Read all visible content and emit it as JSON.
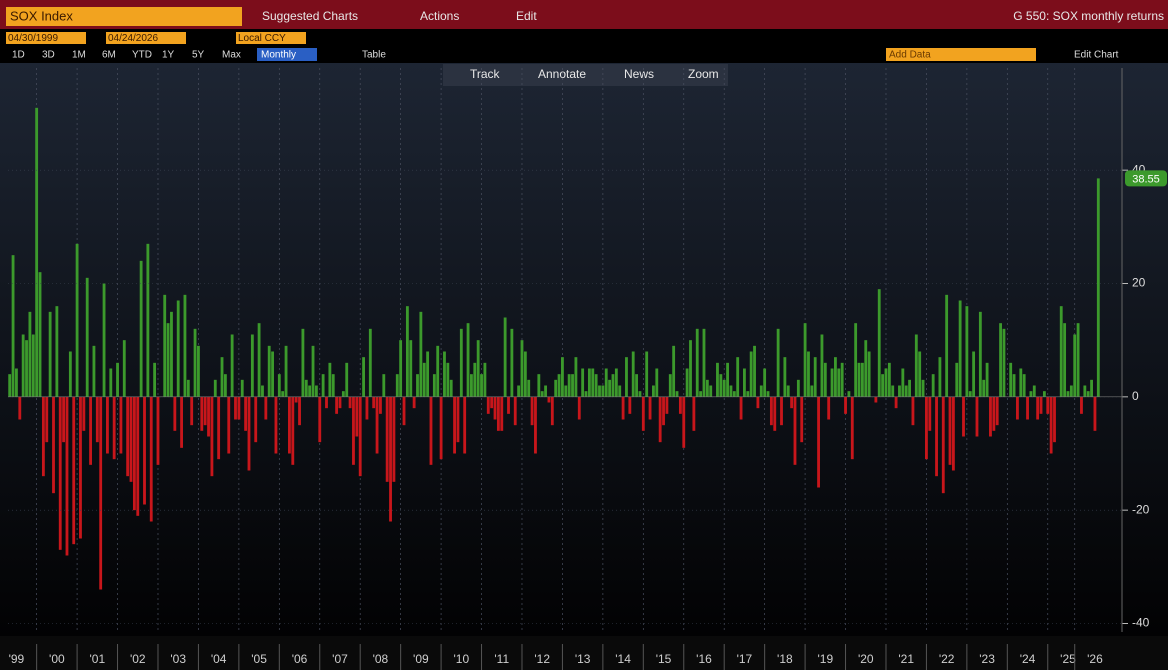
{
  "ui": {
    "security": "SOX Index",
    "menu": [
      "Suggested Charts",
      "Actions",
      "Edit"
    ],
    "chart_name": "G 550: SOX monthly returns",
    "start_date": "04/30/1999",
    "end_date": "04/24/2026",
    "currency": "Local CCY",
    "periods": [
      "1D",
      "3D",
      "1M",
      "6M",
      "YTD",
      "1Y",
      "5Y",
      "Max"
    ],
    "frequency": "Monthly",
    "table": "Table",
    "add_data": "Add Data",
    "edit_chart": "Edit Chart",
    "tools": [
      "Track",
      "Annotate",
      "News",
      "Zoom"
    ]
  },
  "chart_data": {
    "type": "bar",
    "positive_color": "#3c9a2c",
    "negative_color": "#c8161b",
    "ylim": [
      -41.5,
      54.5
    ],
    "yticks": [
      -40,
      -20,
      0,
      20,
      40
    ],
    "categories": [
      null,
      null,
      "'99",
      null,
      null,
      null,
      null,
      null,
      null,
      null,
      null,
      null,
      null,
      null,
      "'00",
      null,
      null,
      null,
      null,
      null,
      null,
      null,
      null,
      null,
      null,
      null,
      "'01",
      null,
      null,
      null,
      null,
      null,
      null,
      null,
      null,
      null,
      null,
      null,
      "'02",
      null,
      null,
      null,
      null,
      null,
      null,
      null,
      null,
      null,
      null,
      null,
      "'03",
      null,
      null,
      null,
      null,
      null,
      null,
      null,
      null,
      null,
      null,
      null,
      "'04",
      null,
      null,
      null,
      null,
      null,
      null,
      null,
      null,
      null,
      null,
      null,
      "'05",
      null,
      null,
      null,
      null,
      null,
      null,
      null,
      null,
      null,
      null,
      null,
      "'06",
      null,
      null,
      null,
      null,
      null,
      null,
      null,
      null,
      null,
      null,
      null,
      "'07",
      null,
      null,
      null,
      null,
      null,
      null,
      null,
      null,
      null,
      null,
      null,
      "'08",
      null,
      null,
      null,
      null,
      null,
      null,
      null,
      null,
      null,
      null,
      null,
      "'09",
      null,
      null,
      null,
      null,
      null,
      null,
      null,
      null,
      null,
      null,
      null,
      "'10",
      null,
      null,
      null,
      null,
      null,
      null,
      null,
      null,
      null,
      null,
      null,
      "'11",
      null,
      null,
      null,
      null,
      null,
      null,
      null,
      null,
      null,
      null,
      null,
      "'12",
      null,
      null,
      null,
      null,
      null,
      null,
      null,
      null,
      null,
      null,
      null,
      "'13",
      null,
      null,
      null,
      null,
      null,
      null,
      null,
      null,
      null,
      null,
      null,
      "'14",
      null,
      null,
      null,
      null,
      null,
      null,
      null,
      null,
      null,
      null,
      null,
      "'15",
      null,
      null,
      null,
      null,
      null,
      null,
      null,
      null,
      null,
      null,
      null,
      "'16",
      null,
      null,
      null,
      null,
      null,
      null,
      null,
      null,
      null,
      null,
      null,
      "'17",
      null,
      null,
      null,
      null,
      null,
      null,
      null,
      null,
      null,
      null,
      null,
      "'18",
      null,
      null,
      null,
      null,
      null,
      null,
      null,
      null,
      null,
      null,
      null,
      "'19",
      null,
      null,
      null,
      null,
      null,
      null,
      null,
      null,
      null,
      null,
      null,
      "'20",
      null,
      null,
      null,
      null,
      null,
      null,
      null,
      null,
      null,
      null,
      null,
      "'21",
      null,
      null,
      null,
      null,
      null,
      null,
      null,
      null,
      null,
      null,
      null,
      "'22",
      null,
      null,
      null,
      null,
      null,
      null,
      null,
      null,
      null,
      null,
      null,
      "'23",
      null,
      null,
      null,
      null,
      null,
      null,
      null,
      null,
      null,
      null,
      null,
      "'24",
      null,
      null,
      null,
      null,
      null,
      null,
      null,
      null,
      null,
      null,
      null,
      "'25",
      null,
      null,
      null,
      null,
      null,
      null,
      null,
      "'26",
      null
    ],
    "values": [
      4,
      25,
      5,
      -4,
      11,
      10,
      15,
      11,
      51,
      22,
      -14,
      -8,
      15,
      -17,
      16,
      -27,
      -8,
      -28,
      8,
      -26,
      27,
      -25,
      -6,
      21,
      -12,
      9,
      -8,
      -34,
      20,
      -10,
      5,
      -11,
      6,
      -10,
      10,
      -14,
      -15,
      -20,
      -21,
      24,
      -19,
      27,
      -22,
      6,
      -12,
      0,
      18,
      13,
      15,
      -6,
      17,
      -9,
      18,
      3,
      -5,
      12,
      9,
      -6,
      -5,
      -7,
      -14,
      3,
      -11,
      7,
      4,
      -10,
      11,
      -4,
      -4,
      3,
      -6,
      -13,
      11,
      -8,
      13,
      2,
      -4,
      9,
      8,
      -10,
      4,
      1,
      9,
      -10,
      -12,
      -1,
      -5,
      12,
      3,
      2,
      9,
      2,
      -8,
      4,
      -2,
      6,
      4,
      -3,
      -2,
      1,
      6,
      -2,
      -12,
      -7,
      -14,
      7,
      -4,
      12,
      -2,
      -10,
      -3,
      4,
      -15,
      -22,
      -15,
      4,
      10,
      -5,
      16,
      10,
      -2,
      4,
      15,
      6,
      8,
      -12,
      4,
      9,
      -11,
      8,
      6,
      3,
      -10,
      -8,
      12,
      -10,
      13,
      4,
      6,
      10,
      4,
      6,
      -3,
      -2,
      -4,
      -6,
      -6,
      14,
      -3,
      12,
      -5,
      2,
      10,
      8,
      3,
      -5,
      -10,
      4,
      1,
      2,
      -1,
      -5,
      3,
      4,
      7,
      2,
      4,
      4,
      7,
      -4,
      5,
      1,
      5,
      5,
      4,
      2,
      2,
      5,
      3,
      4,
      5,
      2,
      -4,
      7,
      -3,
      8,
      4,
      1,
      -6,
      8,
      -4,
      2,
      5,
      -8,
      -5,
      -3,
      4,
      9,
      1,
      -3,
      -9,
      5,
      10,
      -6,
      12,
      1,
      12,
      3,
      2,
      0,
      6,
      4,
      3,
      6,
      2,
      1,
      7,
      -4,
      5,
      1,
      8,
      9,
      -2,
      2,
      5,
      1,
      -5,
      -6,
      12,
      -5,
      7,
      2,
      -2,
      -12,
      3,
      -8,
      13,
      8,
      2,
      7,
      -16,
      11,
      6,
      -4,
      5,
      7,
      5,
      6,
      -3,
      1,
      -11,
      13,
      6,
      6,
      10,
      8,
      0,
      -1,
      19,
      4,
      5,
      6,
      2,
      -2,
      2,
      5,
      2,
      3,
      -5,
      11,
      8,
      3,
      -11,
      -6,
      4,
      -14,
      7,
      -17,
      18,
      -12,
      -13,
      6,
      17,
      -7,
      16,
      1,
      8,
      -7,
      15,
      3,
      6,
      -7,
      -6,
      -5,
      13,
      12,
      0,
      6,
      4,
      -4,
      5,
      4,
      -4,
      1,
      2,
      -4,
      -3,
      1,
      -3,
      -10,
      -8,
      0,
      16,
      13,
      1,
      2,
      11,
      13,
      -3,
      2,
      1,
      3,
      -6,
      38.55
    ]
  }
}
